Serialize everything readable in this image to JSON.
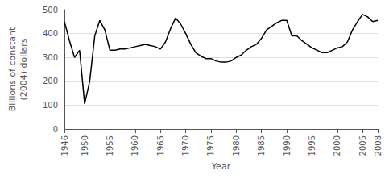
{
  "chart_data": {
    "type": "line",
    "xlabel": "Year",
    "ylabel": "Billions of constant\n(2004) dollars",
    "x": [
      1946,
      1947,
      1948,
      1949,
      1950,
      1951,
      1952,
      1953,
      1954,
      1955,
      1956,
      1957,
      1958,
      1959,
      1960,
      1961,
      1962,
      1963,
      1964,
      1965,
      1966,
      1967,
      1968,
      1969,
      1970,
      1971,
      1972,
      1973,
      1974,
      1975,
      1976,
      1977,
      1978,
      1979,
      1980,
      1981,
      1982,
      1983,
      1984,
      1985,
      1986,
      1987,
      1988,
      1989,
      1990,
      1991,
      1992,
      1993,
      1994,
      1995,
      1996,
      1997,
      1998,
      1999,
      2000,
      2001,
      2002,
      2003,
      2004,
      2005,
      2006,
      2007,
      2008
    ],
    "values": [
      450,
      370,
      300,
      330,
      105,
      200,
      390,
      455,
      415,
      330,
      330,
      335,
      335,
      340,
      345,
      350,
      355,
      350,
      345,
      335,
      365,
      420,
      465,
      440,
      400,
      355,
      320,
      305,
      295,
      295,
      285,
      280,
      280,
      285,
      300,
      310,
      330,
      345,
      355,
      380,
      415,
      430,
      445,
      455,
      455,
      390,
      390,
      370,
      355,
      340,
      330,
      320,
      320,
      330,
      340,
      345,
      365,
      415,
      450,
      480,
      470,
      450,
      455
    ],
    "color": "#000000",
    "xlim": [
      1946,
      2008
    ],
    "xticks": [
      1946,
      1950,
      1955,
      1960,
      1965,
      1970,
      1975,
      1980,
      1985,
      1990,
      1995,
      2000,
      2005,
      2008
    ],
    "ylim": [
      0,
      500
    ],
    "yticks": [
      0,
      100,
      200,
      300,
      400,
      500
    ],
    "grid": true
  }
}
